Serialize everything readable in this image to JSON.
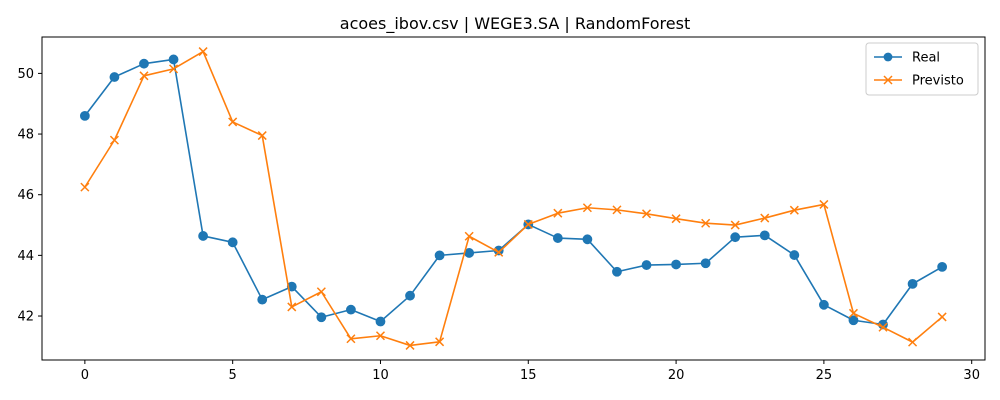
{
  "chart_data": {
    "type": "line",
    "title": "acoes_ibov.csv | WEGE3.SA | RandomForest",
    "xlabel": "",
    "ylabel": "",
    "xlim": [
      -1.45,
      30.45
    ],
    "ylim": [
      40.55,
      51.2
    ],
    "x_ticks": [
      0,
      5,
      10,
      15,
      20,
      25,
      30
    ],
    "y_ticks": [
      42,
      44,
      46,
      48,
      50
    ],
    "grid": false,
    "legend_position": "top-right",
    "x": [
      0,
      1,
      2,
      3,
      4,
      5,
      6,
      7,
      8,
      9,
      10,
      11,
      12,
      13,
      14,
      15,
      16,
      17,
      18,
      19,
      20,
      21,
      22,
      23,
      24,
      25,
      26,
      27,
      28,
      29
    ],
    "series": [
      {
        "name": "Real",
        "color": "#1f77b4",
        "marker": "circle",
        "values": [
          48.6,
          49.88,
          50.32,
          50.46,
          44.64,
          44.43,
          42.54,
          42.97,
          41.96,
          42.21,
          41.82,
          42.67,
          44.0,
          44.08,
          44.16,
          45.02,
          44.57,
          44.53,
          43.46,
          43.68,
          43.7,
          43.74,
          44.6,
          44.66,
          44.01,
          42.37,
          41.86,
          41.72,
          43.06,
          43.62
        ]
      },
      {
        "name": "Previsto",
        "color": "#ff7f0e",
        "marker": "x",
        "values": [
          46.25,
          47.8,
          49.92,
          50.15,
          50.72,
          48.4,
          47.95,
          42.3,
          42.8,
          41.25,
          41.35,
          41.03,
          41.15,
          44.63,
          44.1,
          45.02,
          45.39,
          45.57,
          45.5,
          45.37,
          45.21,
          45.06,
          45.0,
          45.23,
          45.49,
          45.68,
          42.09,
          41.63,
          41.14,
          41.97
        ]
      }
    ]
  }
}
